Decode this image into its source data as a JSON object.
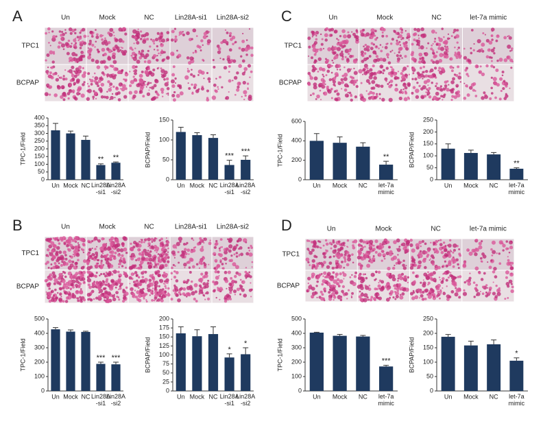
{
  "panels": [
    {
      "label": "A",
      "columns": [
        "Un",
        "Mock",
        "NC",
        "Lin28A-si1",
        "Lin28A-si2"
      ],
      "rows": [
        "TPC1",
        "BCPAP"
      ]
    },
    {
      "label": "B",
      "columns": [
        "Un",
        "Mock",
        "NC",
        "Lin28A-si1",
        "Lin28A-si2"
      ],
      "rows": [
        "TPC1",
        "BCPAP"
      ]
    },
    {
      "label": "C",
      "columns": [
        "Un",
        "Mock",
        "NC",
        "let-7a mimic"
      ],
      "rows": [
        "TPC1",
        "BCPAP"
      ]
    },
    {
      "label": "D",
      "columns": [
        "Un",
        "Mock",
        "NC",
        "let-7a mimic"
      ],
      "rows": [
        "TPC1",
        "BCPAP"
      ]
    }
  ],
  "chart_data": [
    {
      "type": "bar",
      "ylabel": "TPC-1/Field",
      "categories": [
        "Un",
        "Mock",
        "NC",
        "Lin28A -si1",
        "Lin28A -si2"
      ],
      "values": [
        320,
        300,
        258,
        95,
        110
      ],
      "errors": [
        45,
        15,
        25,
        8,
        5
      ],
      "annotations": [
        null,
        null,
        null,
        "**",
        "**"
      ],
      "ylim": [
        0,
        400
      ],
      "yticks": [
        0,
        50,
        100,
        150,
        200,
        250,
        300,
        350,
        400
      ],
      "color": "#1f3a5f"
    },
    {
      "type": "bar",
      "ylabel": "BCPAP/Field",
      "categories": [
        "Un",
        "Mock",
        "NC",
        "Lin28A -si1",
        "Lin28A -si2"
      ],
      "values": [
        120,
        112,
        105,
        37,
        50
      ],
      "errors": [
        12,
        6,
        8,
        12,
        10
      ],
      "annotations": [
        null,
        null,
        null,
        "***",
        "***"
      ],
      "ylim": [
        0,
        150
      ],
      "yticks": [
        0,
        50,
        100,
        150
      ],
      "color": "#1f3a5f"
    },
    {
      "type": "bar",
      "ylabel": "TPC-1/Field",
      "categories": [
        "Un",
        "Mock",
        "NC",
        "let-7a mimic"
      ],
      "values": [
        400,
        380,
        340,
        155
      ],
      "errors": [
        75,
        60,
        40,
        35
      ],
      "annotations": [
        null,
        null,
        null,
        "**"
      ],
      "ylim": [
        0,
        600
      ],
      "yticks": [
        0,
        200,
        400,
        600
      ],
      "color": "#1f3a5f"
    },
    {
      "type": "bar",
      "ylabel": "BCPAP/Field",
      "categories": [
        "Un",
        "Mock",
        "NC",
        "let-7a mimic"
      ],
      "values": [
        130,
        112,
        106,
        46
      ],
      "errors": [
        20,
        12,
        8,
        4
      ],
      "annotations": [
        null,
        null,
        null,
        "**"
      ],
      "ylim": [
        0,
        250
      ],
      "yticks": [
        0,
        50,
        100,
        150,
        200,
        250
      ],
      "color": "#1f3a5f"
    },
    {
      "type": "bar",
      "ylabel": "TPC-1/Field",
      "categories": [
        "Un",
        "Mock",
        "NC",
        "Lin28A -si1",
        "Lin28A -si2"
      ],
      "values": [
        428,
        412,
        410,
        188,
        185
      ],
      "errors": [
        12,
        12,
        5,
        12,
        15
      ],
      "annotations": [
        null,
        null,
        null,
        "***",
        "***"
      ],
      "ylim": [
        0,
        500
      ],
      "yticks": [
        0,
        100,
        200,
        300,
        400,
        500
      ],
      "color": "#1f3a5f"
    },
    {
      "type": "bar",
      "ylabel": "BCPAP/Field",
      "categories": [
        "Un",
        "Mock",
        "NC",
        "Lin28A -si1",
        "Lin28A -si2"
      ],
      "values": [
        160,
        152,
        158,
        93,
        102
      ],
      "errors": [
        18,
        18,
        20,
        10,
        18
      ],
      "annotations": [
        null,
        null,
        null,
        "*",
        "*"
      ],
      "ylim": [
        0,
        200
      ],
      "yticks": [
        0,
        25,
        50,
        75,
        100,
        125,
        150,
        175,
        200
      ],
      "color": "#1f3a5f"
    },
    {
      "type": "bar",
      "ylabel": "TPC-1/Field",
      "categories": [
        "Un",
        "Mock",
        "NC",
        "let-7a mimic"
      ],
      "values": [
        405,
        383,
        378,
        170
      ],
      "errors": [
        3,
        10,
        8,
        8
      ],
      "annotations": [
        null,
        null,
        null,
        "***"
      ],
      "ylim": [
        0,
        500
      ],
      "yticks": [
        0,
        100,
        200,
        300,
        400,
        500
      ],
      "color": "#1f3a5f"
    },
    {
      "type": "bar",
      "ylabel": "BCPAP/Field",
      "categories": [
        "Un",
        "Mock",
        "NC",
        "let-7a mimic"
      ],
      "values": [
        188,
        158,
        162,
        105
      ],
      "errors": [
        8,
        15,
        15,
        10
      ],
      "annotations": [
        null,
        null,
        null,
        "*"
      ],
      "ylim": [
        0,
        250
      ],
      "yticks": [
        0,
        50,
        100,
        150,
        200,
        250
      ],
      "color": "#1f3a5f"
    }
  ]
}
